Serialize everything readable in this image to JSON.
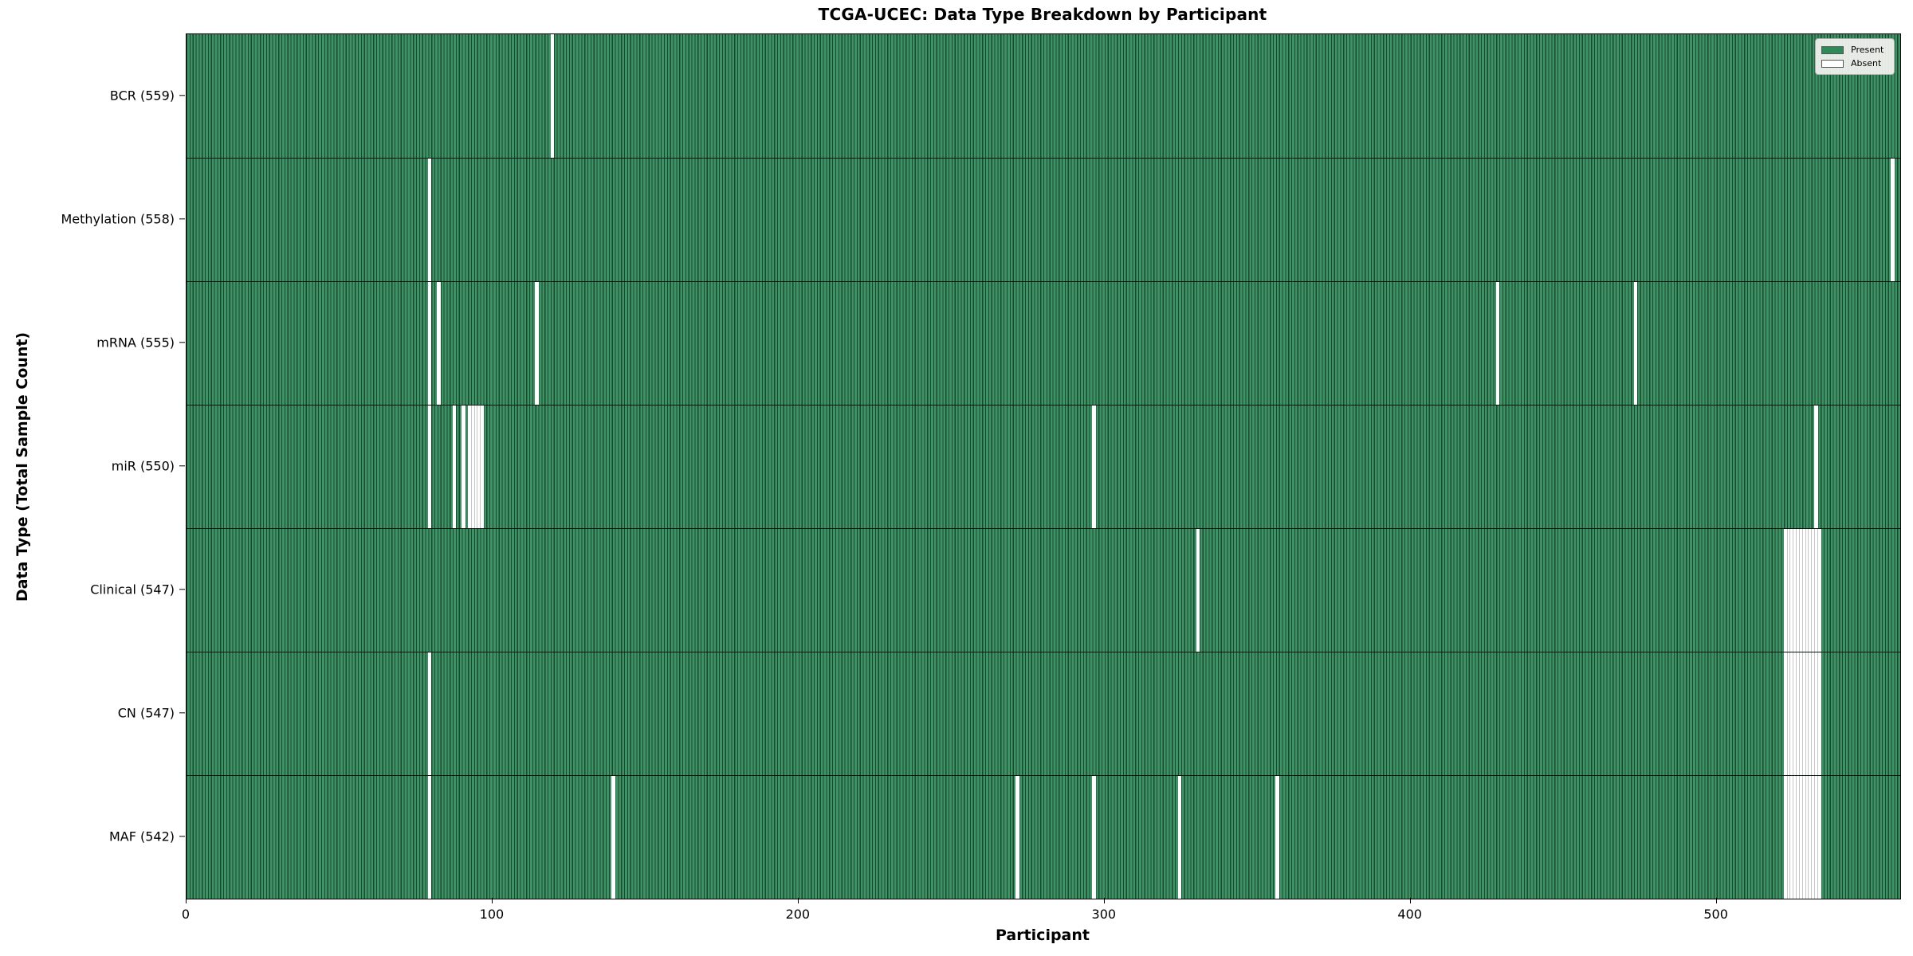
{
  "figure": {
    "title": "TCGA-UCEC: Data Type Breakdown by Participant",
    "xlabel": "Participant",
    "ylabel": "Data Type (Total Sample Count)"
  },
  "legend": {
    "items": [
      {
        "label": "Present",
        "color": "#2e8b57"
      },
      {
        "label": "Absent",
        "color": "#ffffff"
      }
    ]
  },
  "chart_data": {
    "type": "heatmap",
    "title": "TCGA-UCEC: Data Type Breakdown by Participant",
    "xlabel": "Participant",
    "ylabel": "Data Type (Total Sample Count)",
    "legend_position": "upper right",
    "grid": false,
    "n_participants": 560,
    "x_range": [
      0,
      560
    ],
    "x_ticks": [
      0,
      100,
      200,
      300,
      400,
      500
    ],
    "legend": [
      "Present",
      "Absent"
    ],
    "colors": {
      "present": "#2e8b57",
      "present_fill": "#3f9266",
      "present_edge": "#17492c",
      "absent": "#ffffff",
      "absent_separator": "#c6c6c6"
    },
    "rows": [
      {
        "label": "BCR (559)",
        "data_type": "BCR",
        "total_sample_count": 559,
        "absent_participants": [
          119
        ]
      },
      {
        "label": "Methylation (558)",
        "data_type": "Methylation",
        "total_sample_count": 558,
        "absent_participants": [
          79,
          557
        ]
      },
      {
        "label": "mRNA (555)",
        "data_type": "mRNA",
        "total_sample_count": 555,
        "absent_participants": [
          79,
          82,
          114,
          428,
          473
        ]
      },
      {
        "label": "miR (550)",
        "data_type": "miR",
        "total_sample_count": 550,
        "absent_participants": [
          79,
          87,
          90,
          92,
          93,
          94,
          95,
          96,
          296,
          532
        ]
      },
      {
        "label": "Clinical (547)",
        "data_type": "Clinical",
        "total_sample_count": 547,
        "absent_participants": [
          330,
          522,
          523,
          524,
          525,
          526,
          527,
          528,
          529,
          530,
          531,
          532,
          533
        ]
      },
      {
        "label": "CN (547)",
        "data_type": "CN",
        "total_sample_count": 547,
        "absent_participants": [
          79,
          522,
          523,
          524,
          525,
          526,
          527,
          528,
          529,
          530,
          531,
          532,
          533
        ]
      },
      {
        "label": "MAF (542)",
        "data_type": "MAF",
        "total_sample_count": 542,
        "absent_participants": [
          79,
          139,
          271,
          296,
          324,
          356,
          522,
          523,
          524,
          525,
          526,
          527,
          528,
          529,
          530,
          531,
          532,
          533
        ]
      }
    ]
  }
}
